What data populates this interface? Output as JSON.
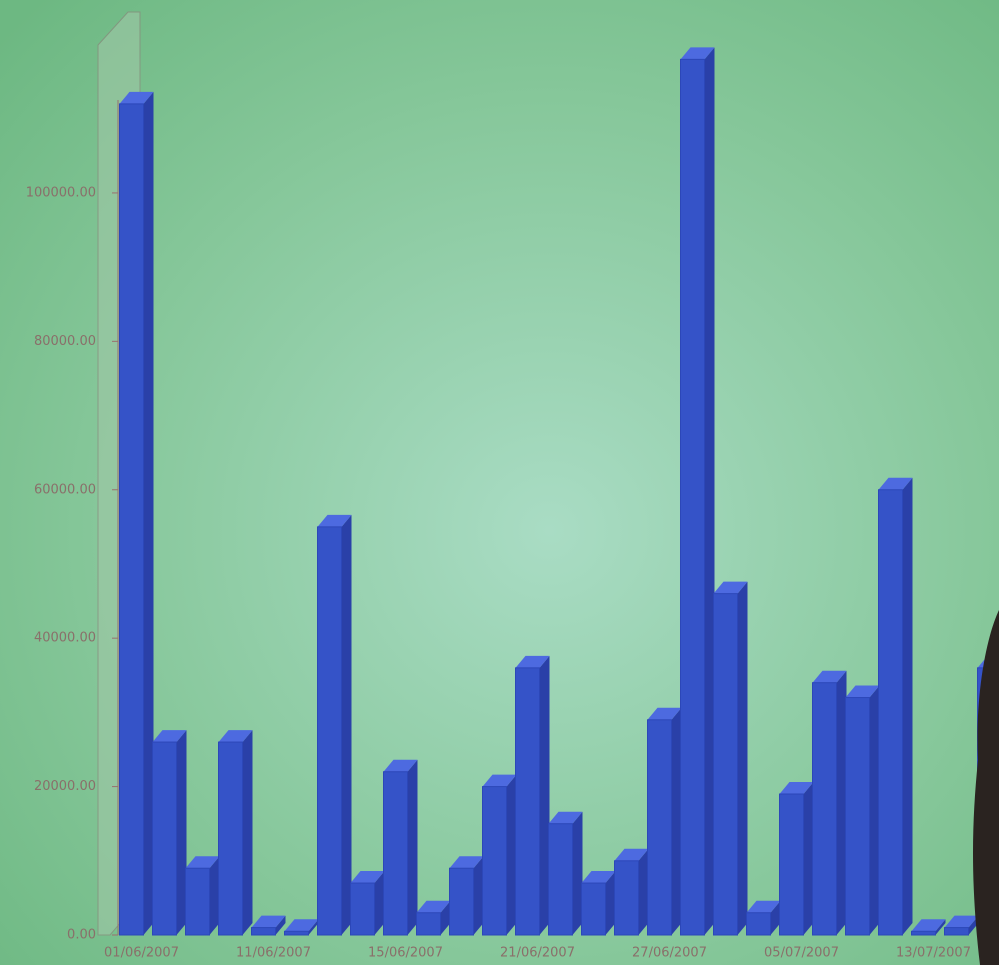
{
  "chart_data": {
    "type": "bar3d",
    "categories": [
      "01/06/2007",
      null,
      null,
      null,
      "11/06/2007",
      null,
      null,
      null,
      "15/06/2007",
      null,
      null,
      null,
      "21/06/2007",
      null,
      null,
      null,
      "27/06/2007",
      null,
      null,
      null,
      "05/07/2007",
      null,
      null,
      null,
      "13/07/2007",
      null,
      null
    ],
    "values": [
      112000,
      26000,
      9000,
      26000,
      1000,
      500,
      55000,
      7000,
      22000,
      3000,
      9000,
      20000,
      36000,
      15000,
      7000,
      10000,
      29000,
      118000,
      46000,
      3000,
      19000,
      34000,
      32000,
      60000,
      500,
      1000,
      36000
    ],
    "color": "#3553c8",
    "ylim": [
      0,
      126000
    ],
    "yticks": [
      {
        "value": 0,
        "label": "0.00"
      },
      {
        "value": 20000,
        "label": "20000.00"
      },
      {
        "value": 40000,
        "label": "40000.00"
      },
      {
        "value": 60000,
        "label": "60000.00"
      },
      {
        "value": 80000,
        "label": "80000.00"
      },
      {
        "value": 100000,
        "label": "100000.00"
      }
    ]
  }
}
